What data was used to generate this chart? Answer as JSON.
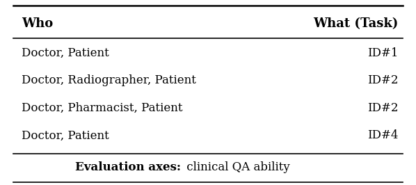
{
  "col1_header": "Who",
  "col2_header": "What (Task)",
  "rows": [
    [
      "Doctor, Patient",
      "ID#1"
    ],
    [
      "Doctor, Radiographer, Patient",
      "ID#2"
    ],
    [
      "Doctor, Pharmacist, Patient",
      "ID#2"
    ],
    [
      "Doctor, Patient",
      "ID#4"
    ]
  ],
  "footer_bold": "Evaluation axes:",
  "footer_normal": " clinical QA ability",
  "bg_color": "#ffffff",
  "text_color": "#000000",
  "header_fontsize": 13,
  "body_fontsize": 12,
  "footer_fontsize": 12
}
